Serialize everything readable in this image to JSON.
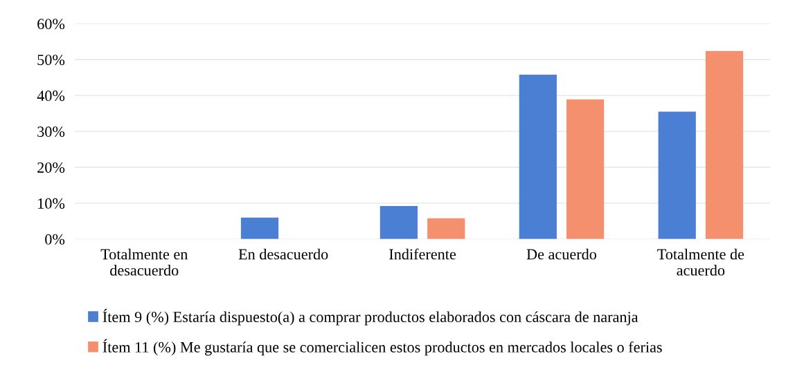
{
  "chart_data": {
    "type": "bar",
    "categories": [
      "Totalmente en\ndesacuerdo",
      "En desacuerdo",
      "Indiferente",
      "De acuerdo",
      "Totalmente de\nacuerdo"
    ],
    "series": [
      {
        "name": "Ítem 9 (%) Estaría dispuesto(a) a comprar productos elaborados con cáscara de naranja",
        "color": "#4a7fd4",
        "values": [
          0,
          6,
          9.2,
          45.8,
          35.5
        ]
      },
      {
        "name": "Ítem 11 (%) Me gustaría que se comercialicen estos productos en mercados locales o ferias",
        "color": "#f4906e",
        "values": [
          0,
          0,
          5.8,
          38.9,
          52.4
        ]
      }
    ],
    "ylim": [
      0,
      60
    ],
    "yticks": [
      {
        "value": 0,
        "label": "0%"
      },
      {
        "value": 10,
        "label": "10%"
      },
      {
        "value": 20,
        "label": "20%"
      },
      {
        "value": 30,
        "label": "30%"
      },
      {
        "value": 40,
        "label": "40%"
      },
      {
        "value": 50,
        "label": "50%"
      },
      {
        "value": 60,
        "label": "60%"
      }
    ],
    "grid": "y",
    "legend": "bottom"
  }
}
